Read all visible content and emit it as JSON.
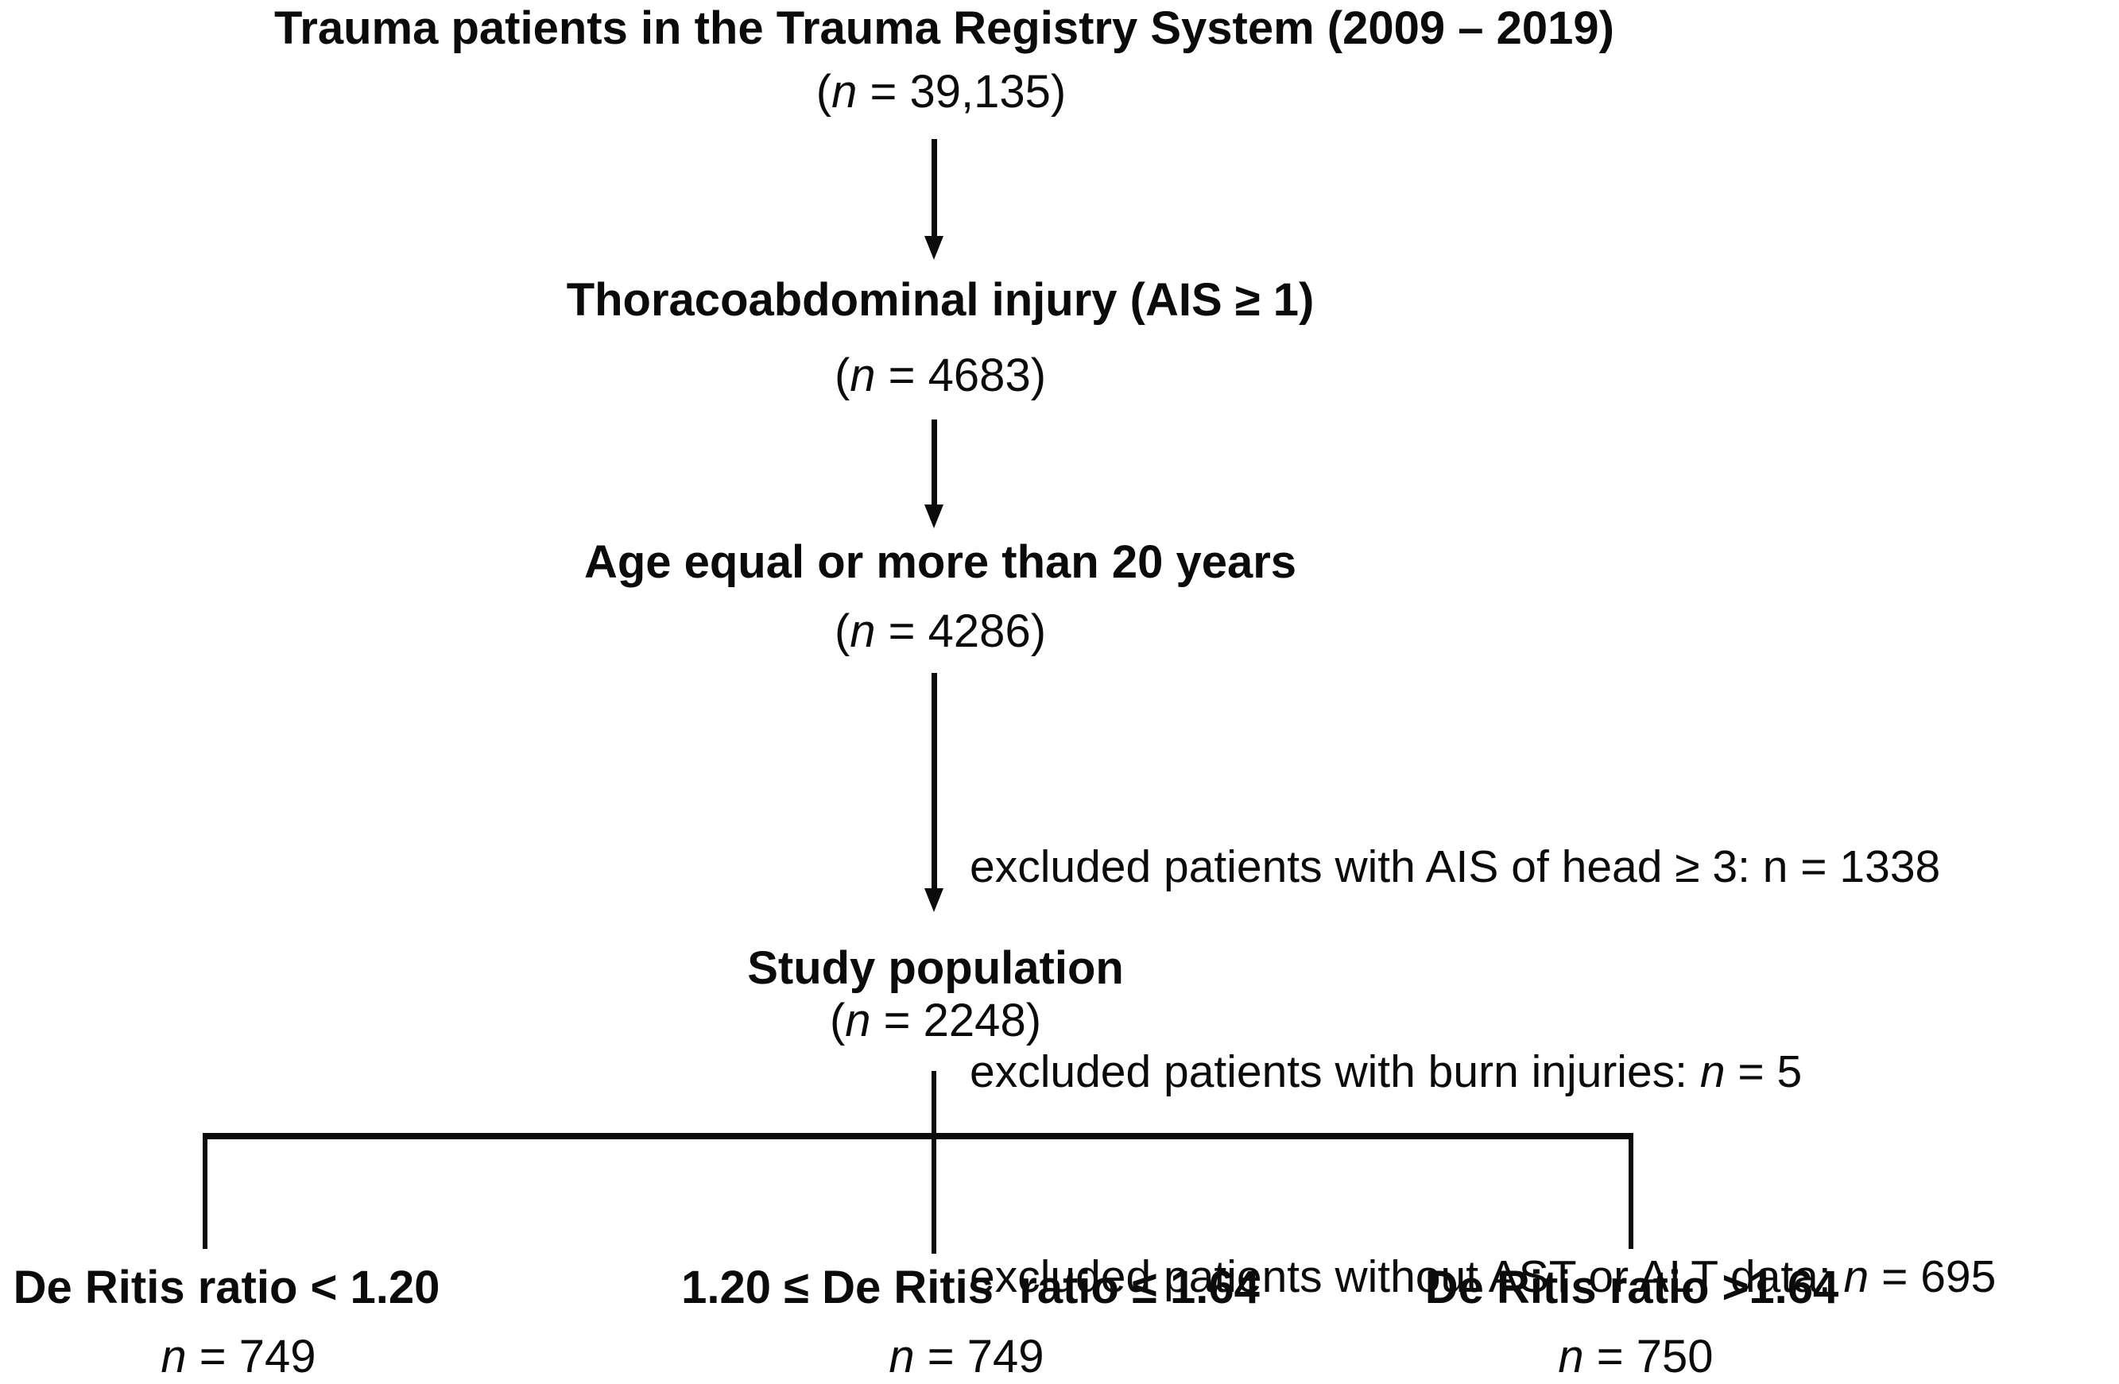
{
  "figure": {
    "bg_color": "#ffffff",
    "ink_color": "#0b0b0b",
    "nodes": [
      {
        "title": "Trauma patients in the Trauma Registry System (2009 – 2019)",
        "count": [
          {
            "t": "("
          },
          {
            "t": "n",
            "i": true
          },
          {
            "t": " = 39,135)"
          }
        ]
      },
      {
        "title": "Thoracoabdominal injury (AIS ≥ 1)",
        "count": [
          {
            "t": "("
          },
          {
            "t": "n",
            "i": true
          },
          {
            "t": " = 4683)"
          }
        ]
      },
      {
        "title": "Age equal or more than 20 years",
        "count": [
          {
            "t": "("
          },
          {
            "t": "n",
            "i": true
          },
          {
            "t": " = 4286)"
          }
        ]
      },
      {
        "title": "Study population",
        "count": [
          {
            "t": "("
          },
          {
            "t": "n",
            "i": true
          },
          {
            "t": " = 2248)"
          }
        ]
      }
    ],
    "exclusions": [
      [
        {
          "t": "excluded patients with AIS of head ≥ 3: n = 1338"
        }
      ],
      [
        {
          "t": "excluded patients with burn injuries: "
        },
        {
          "t": "n",
          "i": true
        },
        {
          "t": " = 5"
        }
      ],
      [
        {
          "t": "excluded patients without AST or ALT data: "
        },
        {
          "t": "n",
          "i": true
        },
        {
          "t": " = 695"
        }
      ]
    ],
    "branches": [
      {
        "label": "De Ritis ratio < 1.20",
        "count": [
          {
            "t": "n",
            "i": true
          },
          {
            "t": " = 749"
          }
        ]
      },
      {
        "label": "1.20 ≤ De Ritis  ratio ≤ 1.64",
        "count": [
          {
            "t": "n",
            "i": true
          },
          {
            "t": " = 749"
          }
        ]
      },
      {
        "label": "De Ritis ratio >1.64",
        "count": [
          {
            "t": "n",
            "i": true
          },
          {
            "t": " = 750"
          }
        ]
      }
    ]
  }
}
